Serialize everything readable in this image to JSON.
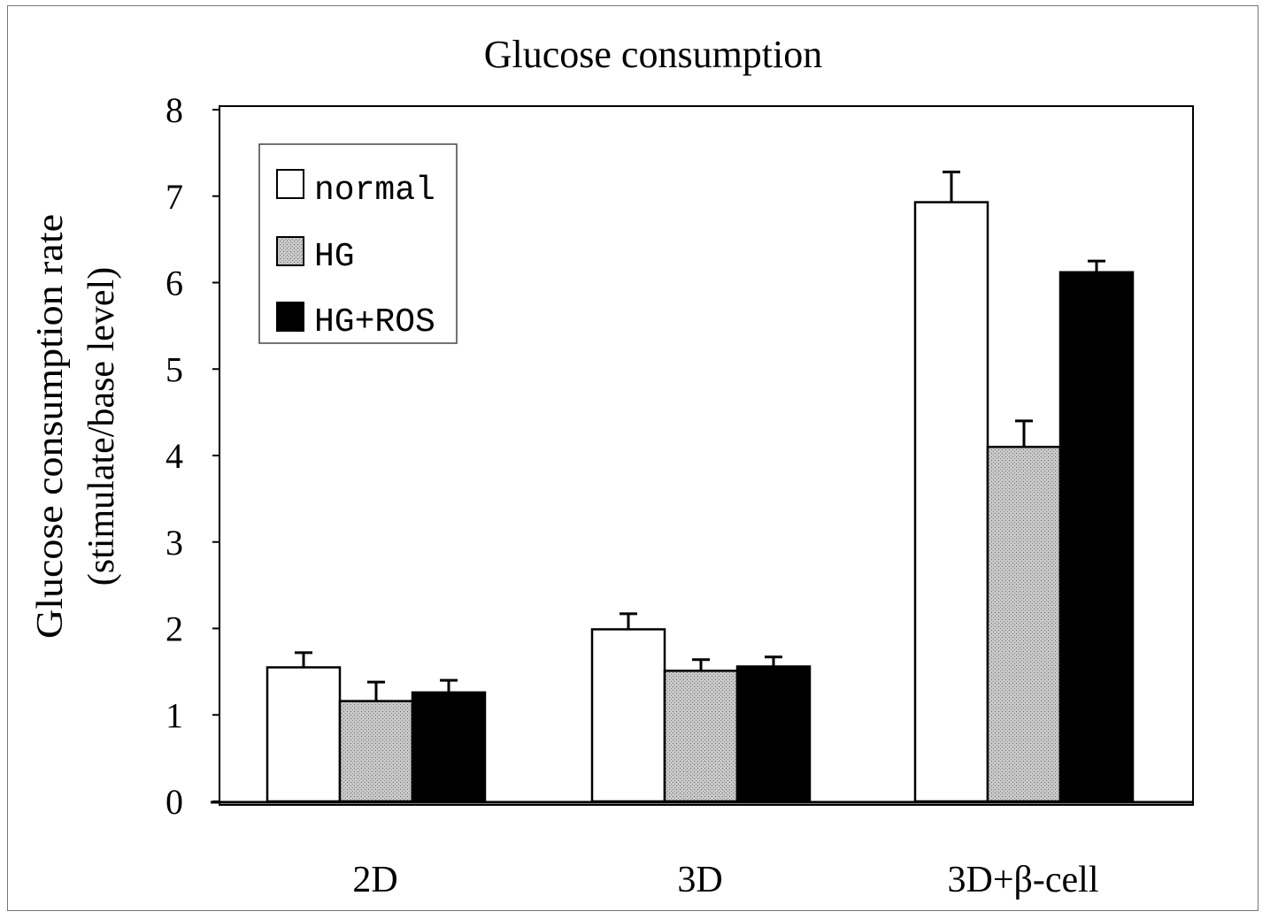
{
  "chart_data": {
    "type": "bar",
    "title": "Glucose consumption",
    "xlabel": "",
    "ylabel": "Glucose consumption rate",
    "ylabel_sub": "(stimulate/base level)",
    "categories": [
      "2D",
      "3D",
      "3D+β-cell"
    ],
    "series": [
      {
        "name": "normal",
        "values": [
          1.55,
          1.99,
          6.93
        ],
        "errors": [
          0.17,
          0.18,
          0.35
        ],
        "color": "#ffffff"
      },
      {
        "name": "HG",
        "values": [
          1.16,
          1.51,
          4.1
        ],
        "errors": [
          0.22,
          0.13,
          0.3
        ],
        "color": "#bdbdbd"
      },
      {
        "name": "HG+ROS",
        "values": [
          1.26,
          1.56,
          6.12
        ],
        "errors": [
          0.14,
          0.11,
          0.13
        ],
        "color": "#000000"
      }
    ],
    "ylim": [
      0,
      8
    ],
    "yticks": [
      "0",
      "1",
      "2",
      "3",
      "4",
      "5",
      "6",
      "7",
      "8"
    ],
    "legend_position": "top-left"
  }
}
